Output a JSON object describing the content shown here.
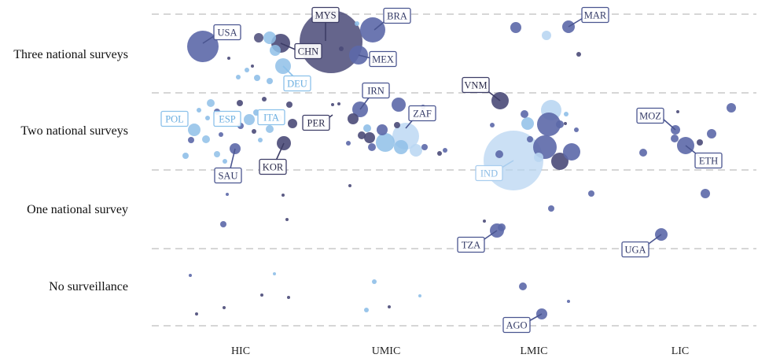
{
  "chart_data": {
    "type": "scatter",
    "title": "",
    "xlabel": "",
    "ylabel": "",
    "x_categories": [
      "HIC",
      "UMIC",
      "LMIC",
      "LIC"
    ],
    "y_categories": [
      "No surveillance",
      "One national survey",
      "Two national surveys",
      "Three national surveys"
    ],
    "grid": "horizontal dashed lines between rows",
    "colors": {
      "dark": "#4a4a78",
      "medium": "#5c68a8",
      "light": "#8fbfe8",
      "pale": "#b9d6f2"
    },
    "labeled_points": [
      {
        "label": "USA",
        "income": "HIC",
        "surveys": "Three national surveys",
        "color": "medium"
      },
      {
        "label": "CHN",
        "income": "UMIC",
        "surveys": "Three national surveys",
        "color": "dark"
      },
      {
        "label": "MYS",
        "income": "UMIC",
        "surveys": "Three national surveys",
        "color": "dark"
      },
      {
        "label": "BRA",
        "income": "UMIC",
        "surveys": "Three national surveys",
        "color": "medium"
      },
      {
        "label": "MEX",
        "income": "UMIC",
        "surveys": "Three national surveys",
        "color": "medium"
      },
      {
        "label": "DEU",
        "income": "HIC",
        "surveys": "Three national surveys",
        "color": "light"
      },
      {
        "label": "MAR",
        "income": "LMIC",
        "surveys": "Three national surveys",
        "color": "medium"
      },
      {
        "label": "POL",
        "income": "HIC",
        "surveys": "Two national surveys",
        "color": "light"
      },
      {
        "label": "ESP",
        "income": "HIC",
        "surveys": "Two national surveys",
        "color": "light"
      },
      {
        "label": "ITA",
        "income": "HIC",
        "surveys": "Two national surveys",
        "color": "light"
      },
      {
        "label": "PER",
        "income": "UMIC",
        "surveys": "Two national surveys",
        "color": "dark"
      },
      {
        "label": "IRN",
        "income": "UMIC",
        "surveys": "Two national surveys",
        "color": "medium"
      },
      {
        "label": "ZAF",
        "income": "UMIC",
        "surveys": "Two national surveys",
        "color": "medium"
      },
      {
        "label": "SAU",
        "income": "HIC",
        "surveys": "Two national surveys",
        "color": "medium"
      },
      {
        "label": "KOR",
        "income": "HIC",
        "surveys": "Two national surveys",
        "color": "dark"
      },
      {
        "label": "VNM",
        "income": "LMIC",
        "surveys": "Two national surveys",
        "color": "dark"
      },
      {
        "label": "IND",
        "income": "LMIC",
        "surveys": "Two national surveys",
        "color": "pale"
      },
      {
        "label": "MOZ",
        "income": "LIC",
        "surveys": "Two national surveys",
        "color": "medium"
      },
      {
        "label": "ETH",
        "income": "LIC",
        "surveys": "Two national surveys",
        "color": "medium"
      },
      {
        "label": "TZA",
        "income": "LMIC",
        "surveys": "One national survey",
        "color": "medium"
      },
      {
        "label": "UGA",
        "income": "LIC",
        "surveys": "One national survey",
        "color": "medium"
      },
      {
        "label": "AGO",
        "income": "LMIC",
        "surveys": "No surveillance",
        "color": "medium"
      }
    ]
  }
}
